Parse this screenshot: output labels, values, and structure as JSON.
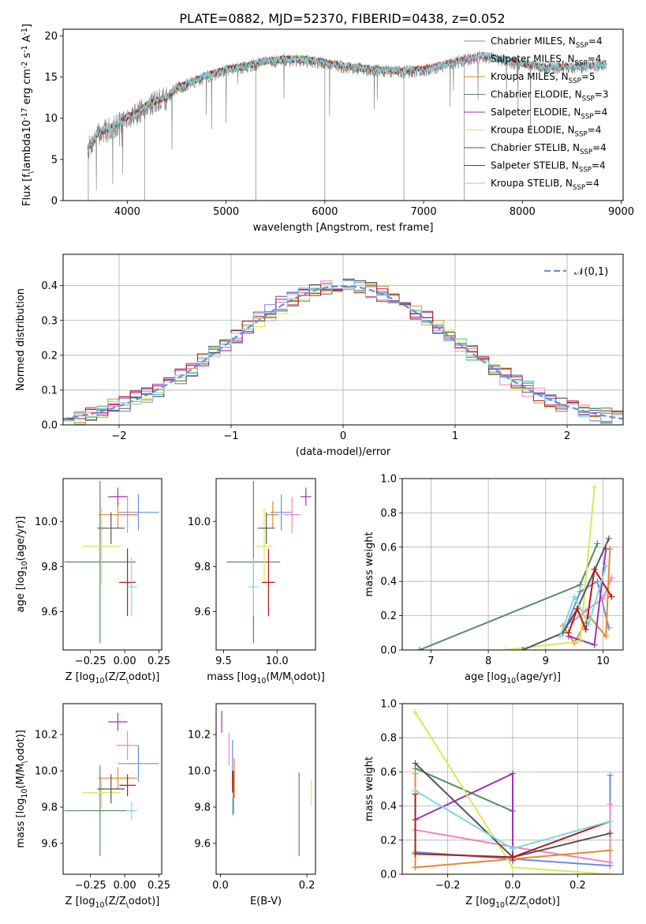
{
  "figure": {
    "title": "PLATE=0882, MJD=52370, FIBERID=0438, z=0.052"
  },
  "colors": {
    "Chabrier MILES": "#6a8ed8",
    "Salpeter MILES": "#ef84c3",
    "Kroupa MILES": "#e58a2e",
    "Chabrier ELODIE": "#5a8a64",
    "Salpeter ELODIE": "#9a34b8",
    "Kroupa ELODIE": "#d9e858",
    "Chabrier STELIB": "#555555",
    "Salpeter STELIB": "#b51a1a",
    "Kroupa STELIB": "#7fd8e0"
  },
  "chart_data": [
    {
      "id": "spectrum",
      "type": "line",
      "xlabel": "wavelength [Angstrom, rest frame]",
      "ylabel": "Flux [f$_\\lambda$10$^{-17}$ erg cm$^{-2}$ s$^{-1}$ A$^{-1}$]",
      "xlim": [
        3350,
        9020
      ],
      "ylim": [
        0,
        20.8
      ],
      "xticks": [
        4000,
        5000,
        6000,
        7000,
        8000,
        9000
      ],
      "yticks": [
        0,
        5,
        10,
        15,
        20
      ],
      "legend_position": "upper right",
      "data_range": [
        3600,
        8850
      ],
      "data_color": "#808080",
      "continuum": [
        [
          3600,
          6.2
        ],
        [
          3700,
          8.0
        ],
        [
          3800,
          8.5
        ],
        [
          3900,
          9.2
        ],
        [
          4000,
          10.0
        ],
        [
          4100,
          10.5
        ],
        [
          4200,
          11.5
        ],
        [
          4300,
          12.0
        ],
        [
          4400,
          12.4
        ],
        [
          4500,
          13.6
        ],
        [
          4600,
          14.0
        ],
        [
          4800,
          15.0
        ],
        [
          5000,
          15.8
        ],
        [
          5200,
          16.2
        ],
        [
          5400,
          16.8
        ],
        [
          5600,
          17.0
        ],
        [
          5800,
          17.0
        ],
        [
          6000,
          16.6
        ],
        [
          6200,
          16.2
        ],
        [
          6400,
          15.9
        ],
        [
          6600,
          15.7
        ],
        [
          6800,
          15.6
        ],
        [
          7000,
          15.8
        ],
        [
          7200,
          16.3
        ],
        [
          7400,
          17.0
        ],
        [
          7600,
          17.5
        ],
        [
          7800,
          17.0
        ],
        [
          8000,
          16.5
        ],
        [
          8200,
          16.1
        ],
        [
          8400,
          16.1
        ],
        [
          8600,
          16.2
        ],
        [
          8850,
          16.4
        ]
      ],
      "series": [
        {
          "name": "Chabrier MILES",
          "legend": "Chabrier MILES, N$_{SSP}$=4"
        },
        {
          "name": "Salpeter MILES",
          "legend": "Salpeter MILES, N$_{SSP}$=4"
        },
        {
          "name": "Kroupa MILES",
          "legend": "Kroupa MILES, N$_{SSP}$=5"
        },
        {
          "name": "Chabrier ELODIE",
          "legend": "Chabrier ELODIE, N$_{SSP}$=3"
        },
        {
          "name": "Salpeter ELODIE",
          "legend": "Salpeter ELODIE, N$_{SSP}$=4"
        },
        {
          "name": "Kroupa ELODIE",
          "legend": "Kroupa ELODIE, N$_{SSP}$=4"
        },
        {
          "name": "Chabrier STELIB",
          "legend": "Chabrier STELIB, N$_{SSP}$=4"
        },
        {
          "name": "Salpeter STELIB",
          "legend": "Salpeter STELIB, N$_{SSP}$=4"
        },
        {
          "name": "Kroupa STELIB",
          "legend": "Kroupa STELIB, N$_{SSP}$=4"
        }
      ],
      "model_ranges": {
        "MILES": [
          3600,
          7400
        ],
        "ELODIE": [
          3900,
          6800
        ],
        "STELIB": [
          3600,
          8850
        ]
      }
    },
    {
      "id": "residuals",
      "type": "line",
      "xlabel": "(data-model)/error",
      "ylabel": "Normed distribution",
      "xlim": [
        -2.5,
        2.5
      ],
      "ylim": [
        0,
        0.49
      ],
      "xticks": [
        -2,
        -1,
        0,
        1,
        2
      ],
      "yticks": [
        0.0,
        0.1,
        0.2,
        0.3,
        0.4
      ],
      "grid": true,
      "legend_position": "upper right",
      "legend": "$\\mathcal{N}(0,1)$",
      "normal_color": "#6a8ed8",
      "bins": {
        "start": -2.5,
        "width": 0.1,
        "count": 50
      },
      "series_offsets": [
        0.006,
        -0.008,
        0.012,
        -0.004,
        0.016,
        -0.012,
        0.003,
        0.009,
        -0.006
      ]
    },
    {
      "id": "age-vs-Z",
      "type": "scatter",
      "xlabel": "Z [log$_{10}$($Z/Z_\\odot$)]",
      "ylabel": "age  [log$_{10}$($age/yr$)]",
      "xlim": [
        -0.45,
        0.27
      ],
      "ylim": [
        9.43,
        10.19
      ],
      "xticks": [
        -0.25,
        0.0,
        0.25
      ],
      "yticks": [
        9.6,
        9.8,
        10.0
      ],
      "points": [
        {
          "series": "Chabrier MILES",
          "x": 0.1,
          "y": 10.04,
          "xerr": 0.15,
          "yerr": 0.08
        },
        {
          "series": "Salpeter MILES",
          "x": 0.02,
          "y": 10.03,
          "xerr": 0.08,
          "yerr": 0.08
        },
        {
          "series": "Kroupa MILES",
          "x": -0.05,
          "y": 10.03,
          "xerr": 0.14,
          "yerr": 0.06
        },
        {
          "series": "Chabrier ELODIE",
          "x": -0.18,
          "y": 9.82,
          "xerr": 0.26,
          "yerr": 0.36
        },
        {
          "series": "Salpeter ELODIE",
          "x": -0.05,
          "y": 10.11,
          "xerr": 0.07,
          "yerr": 0.04
        },
        {
          "series": "Kroupa ELODIE",
          "x": -0.17,
          "y": 9.89,
          "xerr": 0.14,
          "yerr": 0.17
        },
        {
          "series": "Chabrier STELIB",
          "x": -0.1,
          "y": 9.97,
          "xerr": 0.1,
          "yerr": 0.07
        },
        {
          "series": "Salpeter STELIB",
          "x": 0.02,
          "y": 9.73,
          "xerr": 0.06,
          "yerr": 0.15
        },
        {
          "series": "Kroupa STELIB",
          "x": 0.05,
          "y": 9.71,
          "xerr": 0.04,
          "yerr": 0.13
        }
      ]
    },
    {
      "id": "age-vs-mass",
      "type": "scatter",
      "xlabel": "mass [log$_{10}$($M/M_\\odot$)]",
      "xlim": [
        9.43,
        10.36
      ],
      "ylim": [
        9.43,
        10.19
      ],
      "xticks": [
        9.5,
        10.0
      ],
      "yticks": [
        9.6,
        9.8,
        10.0
      ],
      "points": [
        {
          "series": "Chabrier MILES",
          "x": 10.04,
          "y": 10.04,
          "xerr": 0.1,
          "yerr": 0.08
        },
        {
          "series": "Salpeter MILES",
          "x": 10.14,
          "y": 10.03,
          "xerr": 0.08,
          "yerr": 0.08
        },
        {
          "series": "Kroupa MILES",
          "x": 9.96,
          "y": 10.03,
          "xerr": 0.06,
          "yerr": 0.06
        },
        {
          "series": "Chabrier ELODIE",
          "x": 9.78,
          "y": 9.82,
          "xerr": 0.25,
          "yerr": 0.36
        },
        {
          "series": "Salpeter ELODIE",
          "x": 10.27,
          "y": 10.11,
          "xerr": 0.05,
          "yerr": 0.04
        },
        {
          "series": "Kroupa ELODIE",
          "x": 9.88,
          "y": 9.89,
          "xerr": 0.08,
          "yerr": 0.17
        },
        {
          "series": "Chabrier STELIB",
          "x": 9.9,
          "y": 9.97,
          "xerr": 0.08,
          "yerr": 0.07
        },
        {
          "series": "Salpeter STELIB",
          "x": 9.92,
          "y": 9.73,
          "xerr": 0.06,
          "yerr": 0.15
        },
        {
          "series": "Kroupa STELIB",
          "x": 9.78,
          "y": 9.71,
          "xerr": 0.05,
          "yerr": 0.13
        }
      ]
    },
    {
      "id": "mass-weight-vs-age",
      "type": "line",
      "xlabel": "age  [log$_{10}$($age/yr$)]",
      "ylabel": "mass weight",
      "xlim": [
        6.5,
        10.35
      ],
      "ylim": [
        0,
        1.0
      ],
      "xticks": [
        7,
        8,
        9,
        10
      ],
      "yticks": [
        0.0,
        0.2,
        0.4,
        0.6,
        0.8,
        1.0
      ],
      "grid": true,
      "series": [
        {
          "name": "Chabrier MILES",
          "x": [
            9.35,
            9.6,
            9.9,
            10.1
          ],
          "y": [
            0.13,
            0.34,
            0.4,
            0.13
          ]
        },
        {
          "name": "Salpeter MILES",
          "x": [
            9.45,
            9.7,
            10.0,
            10.15
          ],
          "y": [
            0.16,
            0.23,
            0.3,
            0.42
          ]
        },
        {
          "name": "Kroupa MILES",
          "x": [
            9.3,
            9.5,
            9.75,
            10.05,
            10.12
          ],
          "y": [
            0.14,
            0.04,
            0.2,
            0.08,
            0.59
          ]
        },
        {
          "name": "Chabrier ELODIE",
          "x": [
            6.8,
            9.6,
            9.9
          ],
          "y": [
            0.0,
            0.38,
            0.62
          ]
        },
        {
          "name": "Salpeter ELODIE",
          "x": [
            9.4,
            9.85,
            10.05
          ],
          "y": [
            0.08,
            0.03,
            0.59
          ]
        },
        {
          "name": "Kroupa ELODIE",
          "x": [
            8.3,
            9.6,
            9.85
          ],
          "y": [
            0.0,
            0.05,
            0.95
          ]
        },
        {
          "name": "Chabrier STELIB",
          "x": [
            8.6,
            9.3,
            9.55,
            10.1
          ],
          "y": [
            0.0,
            0.1,
            0.24,
            0.65
          ]
        },
        {
          "name": "Salpeter STELIB",
          "x": [
            9.4,
            9.55,
            9.7,
            9.85,
            10.15
          ],
          "y": [
            0.1,
            0.24,
            0.12,
            0.47,
            0.31
          ]
        },
        {
          "name": "Kroupa STELIB",
          "x": [
            9.25,
            9.5,
            9.75,
            10.05
          ],
          "y": [
            0.08,
            0.31,
            0.15,
            0.49
          ]
        }
      ]
    },
    {
      "id": "mass-vs-Z",
      "type": "scatter",
      "xlabel": "Z [log$_{10}$($Z/Z_\\odot$)]",
      "ylabel": "mass [log$_{10}$($M/M_\\odot$)]",
      "xlim": [
        -0.45,
        0.27
      ],
      "ylim": [
        9.43,
        10.37
      ],
      "xticks": [
        -0.25,
        0.0,
        0.25
      ],
      "yticks": [
        9.6,
        9.8,
        10.0,
        10.2
      ],
      "points": [
        {
          "series": "Chabrier MILES",
          "x": 0.1,
          "y": 10.04,
          "xerr": 0.15,
          "yerr": 0.1
        },
        {
          "series": "Salpeter MILES",
          "x": 0.02,
          "y": 10.14,
          "xerr": 0.08,
          "yerr": 0.08
        },
        {
          "series": "Kroupa MILES",
          "x": -0.05,
          "y": 9.96,
          "xerr": 0.14,
          "yerr": 0.06
        },
        {
          "series": "Chabrier ELODIE",
          "x": -0.18,
          "y": 9.78,
          "xerr": 0.26,
          "yerr": 0.25
        },
        {
          "series": "Salpeter ELODIE",
          "x": -0.05,
          "y": 10.27,
          "xerr": 0.07,
          "yerr": 0.05
        },
        {
          "series": "Kroupa ELODIE",
          "x": -0.17,
          "y": 9.88,
          "xerr": 0.14,
          "yerr": 0.08
        },
        {
          "series": "Chabrier STELIB",
          "x": -0.1,
          "y": 9.9,
          "xerr": 0.1,
          "yerr": 0.08
        },
        {
          "series": "Salpeter STELIB",
          "x": 0.02,
          "y": 9.92,
          "xerr": 0.06,
          "yerr": 0.06
        },
        {
          "series": "Kroupa STELIB",
          "x": 0.05,
          "y": 9.78,
          "xerr": 0.04,
          "yerr": 0.05
        }
      ]
    },
    {
      "id": "mass-vs-EBV",
      "type": "scatter",
      "xlabel": "E(B-V)",
      "xlim": [
        -0.01,
        0.22
      ],
      "ylim": [
        9.43,
        10.37
      ],
      "xticks": [
        0.0,
        0.2
      ],
      "yticks": [
        9.6,
        9.8,
        10.0,
        10.2
      ],
      "points": [
        {
          "series": "Chabrier MILES",
          "x": 0.028,
          "y": 10.04,
          "xerr": 0.0,
          "yerr": 0.13
        },
        {
          "series": "Salpeter MILES",
          "x": 0.02,
          "y": 10.12,
          "xerr": 0.0,
          "yerr": 0.09
        },
        {
          "series": "Kroupa MILES",
          "x": 0.032,
          "y": 9.96,
          "xerr": 0.0,
          "yerr": 0.11
        },
        {
          "series": "Chabrier ELODIE",
          "x": 0.182,
          "y": 9.76,
          "xerr": 0.0,
          "yerr": 0.23
        },
        {
          "series": "Salpeter ELODIE",
          "x": 0.003,
          "y": 10.27,
          "xerr": 0.0,
          "yerr": 0.06
        },
        {
          "series": "Kroupa ELODIE",
          "x": 0.21,
          "y": 9.88,
          "xerr": 0.0,
          "yerr": 0.07
        },
        {
          "series": "Chabrier STELIB",
          "x": 0.03,
          "y": 9.88,
          "xerr": 0.0,
          "yerr": 0.12
        },
        {
          "series": "Salpeter STELIB",
          "x": 0.028,
          "y": 9.94,
          "xerr": 0.0,
          "yerr": 0.06
        },
        {
          "series": "Kroupa STELIB",
          "x": 0.028,
          "y": 9.8,
          "xerr": 0.0,
          "yerr": 0.05
        }
      ]
    },
    {
      "id": "mass-weight-vs-Z",
      "type": "line",
      "xlabel": "Z [log$_{10}$($Z/Z_\\odot$)]",
      "ylabel": "mass weight",
      "xlim": [
        -0.34,
        0.34
      ],
      "ylim": [
        0,
        1.0
      ],
      "xticks": [
        -0.2,
        0.0,
        0.2
      ],
      "yticks": [
        0.0,
        0.2,
        0.4,
        0.6,
        0.8,
        1.0
      ],
      "grid": true,
      "series": [
        {
          "name": "Chabrier MILES",
          "x": [
            -0.3,
            0.0,
            0.3,
            0.3
          ],
          "y": [
            0.13,
            0.09,
            0.05,
            0.58
          ]
        },
        {
          "name": "Salpeter MILES",
          "x": [
            -0.3,
            0.0,
            0.3,
            0.3
          ],
          "y": [
            0.26,
            0.16,
            0.07,
            0.41
          ]
        },
        {
          "name": "Kroupa MILES",
          "x": [
            -0.3,
            -0.3,
            0.0,
            0.3
          ],
          "y": [
            0.59,
            0.04,
            0.09,
            0.14
          ]
        },
        {
          "name": "Chabrier ELODIE",
          "x": [
            -0.3,
            0.0
          ],
          "y": [
            0.62,
            0.37
          ]
        },
        {
          "name": "Salpeter ELODIE",
          "x": [
            -0.3,
            0.0,
            0.0
          ],
          "y": [
            0.32,
            0.59,
            0.08
          ]
        },
        {
          "name": "Kroupa ELODIE",
          "x": [
            -0.3,
            0.0,
            0.3
          ],
          "y": [
            0.95,
            0.04,
            0.0
          ]
        },
        {
          "name": "Chabrier STELIB",
          "x": [
            -0.3,
            0.0,
            0.3
          ],
          "y": [
            0.65,
            0.1,
            0.24
          ]
        },
        {
          "name": "Salpeter STELIB",
          "x": [
            -0.3,
            -0.3,
            0.0,
            0.3
          ],
          "y": [
            0.47,
            0.12,
            0.1,
            0.31
          ]
        },
        {
          "name": "Kroupa STELIB",
          "x": [
            -0.3,
            0.0,
            0.3
          ],
          "y": [
            0.49,
            0.15,
            0.31
          ]
        }
      ]
    }
  ]
}
